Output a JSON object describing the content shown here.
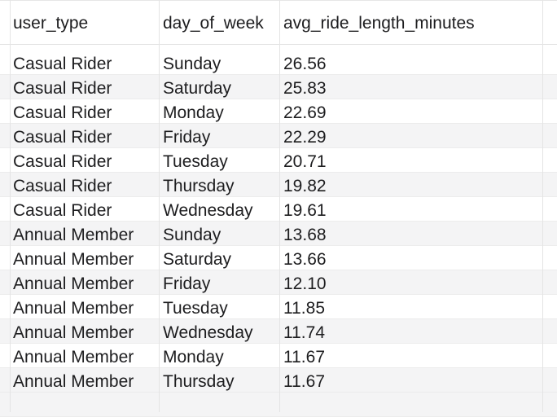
{
  "table": {
    "columns": [
      "user_type",
      "day_of_week",
      "avg_ride_length_minutes"
    ],
    "rows": [
      [
        "Casual Rider",
        "Sunday",
        "26.56"
      ],
      [
        "Casual Rider",
        "Saturday",
        "25.83"
      ],
      [
        "Casual Rider",
        "Monday",
        "22.69"
      ],
      [
        "Casual Rider",
        "Friday",
        "22.29"
      ],
      [
        "Casual Rider",
        "Tuesday",
        "20.71"
      ],
      [
        "Casual Rider",
        "Thursday",
        "19.82"
      ],
      [
        "Casual Rider",
        "Wednesday",
        "19.61"
      ],
      [
        "Annual Member",
        "Sunday",
        "13.68"
      ],
      [
        "Annual Member",
        "Saturday",
        "13.66"
      ],
      [
        "Annual Member",
        "Friday",
        "12.10"
      ],
      [
        "Annual Member",
        "Tuesday",
        "11.85"
      ],
      [
        "Annual Member",
        "Wednesday",
        "11.74"
      ],
      [
        "Annual Member",
        "Monday",
        "11.67"
      ],
      [
        "Annual Member",
        "Thursday",
        "11.67"
      ]
    ]
  }
}
